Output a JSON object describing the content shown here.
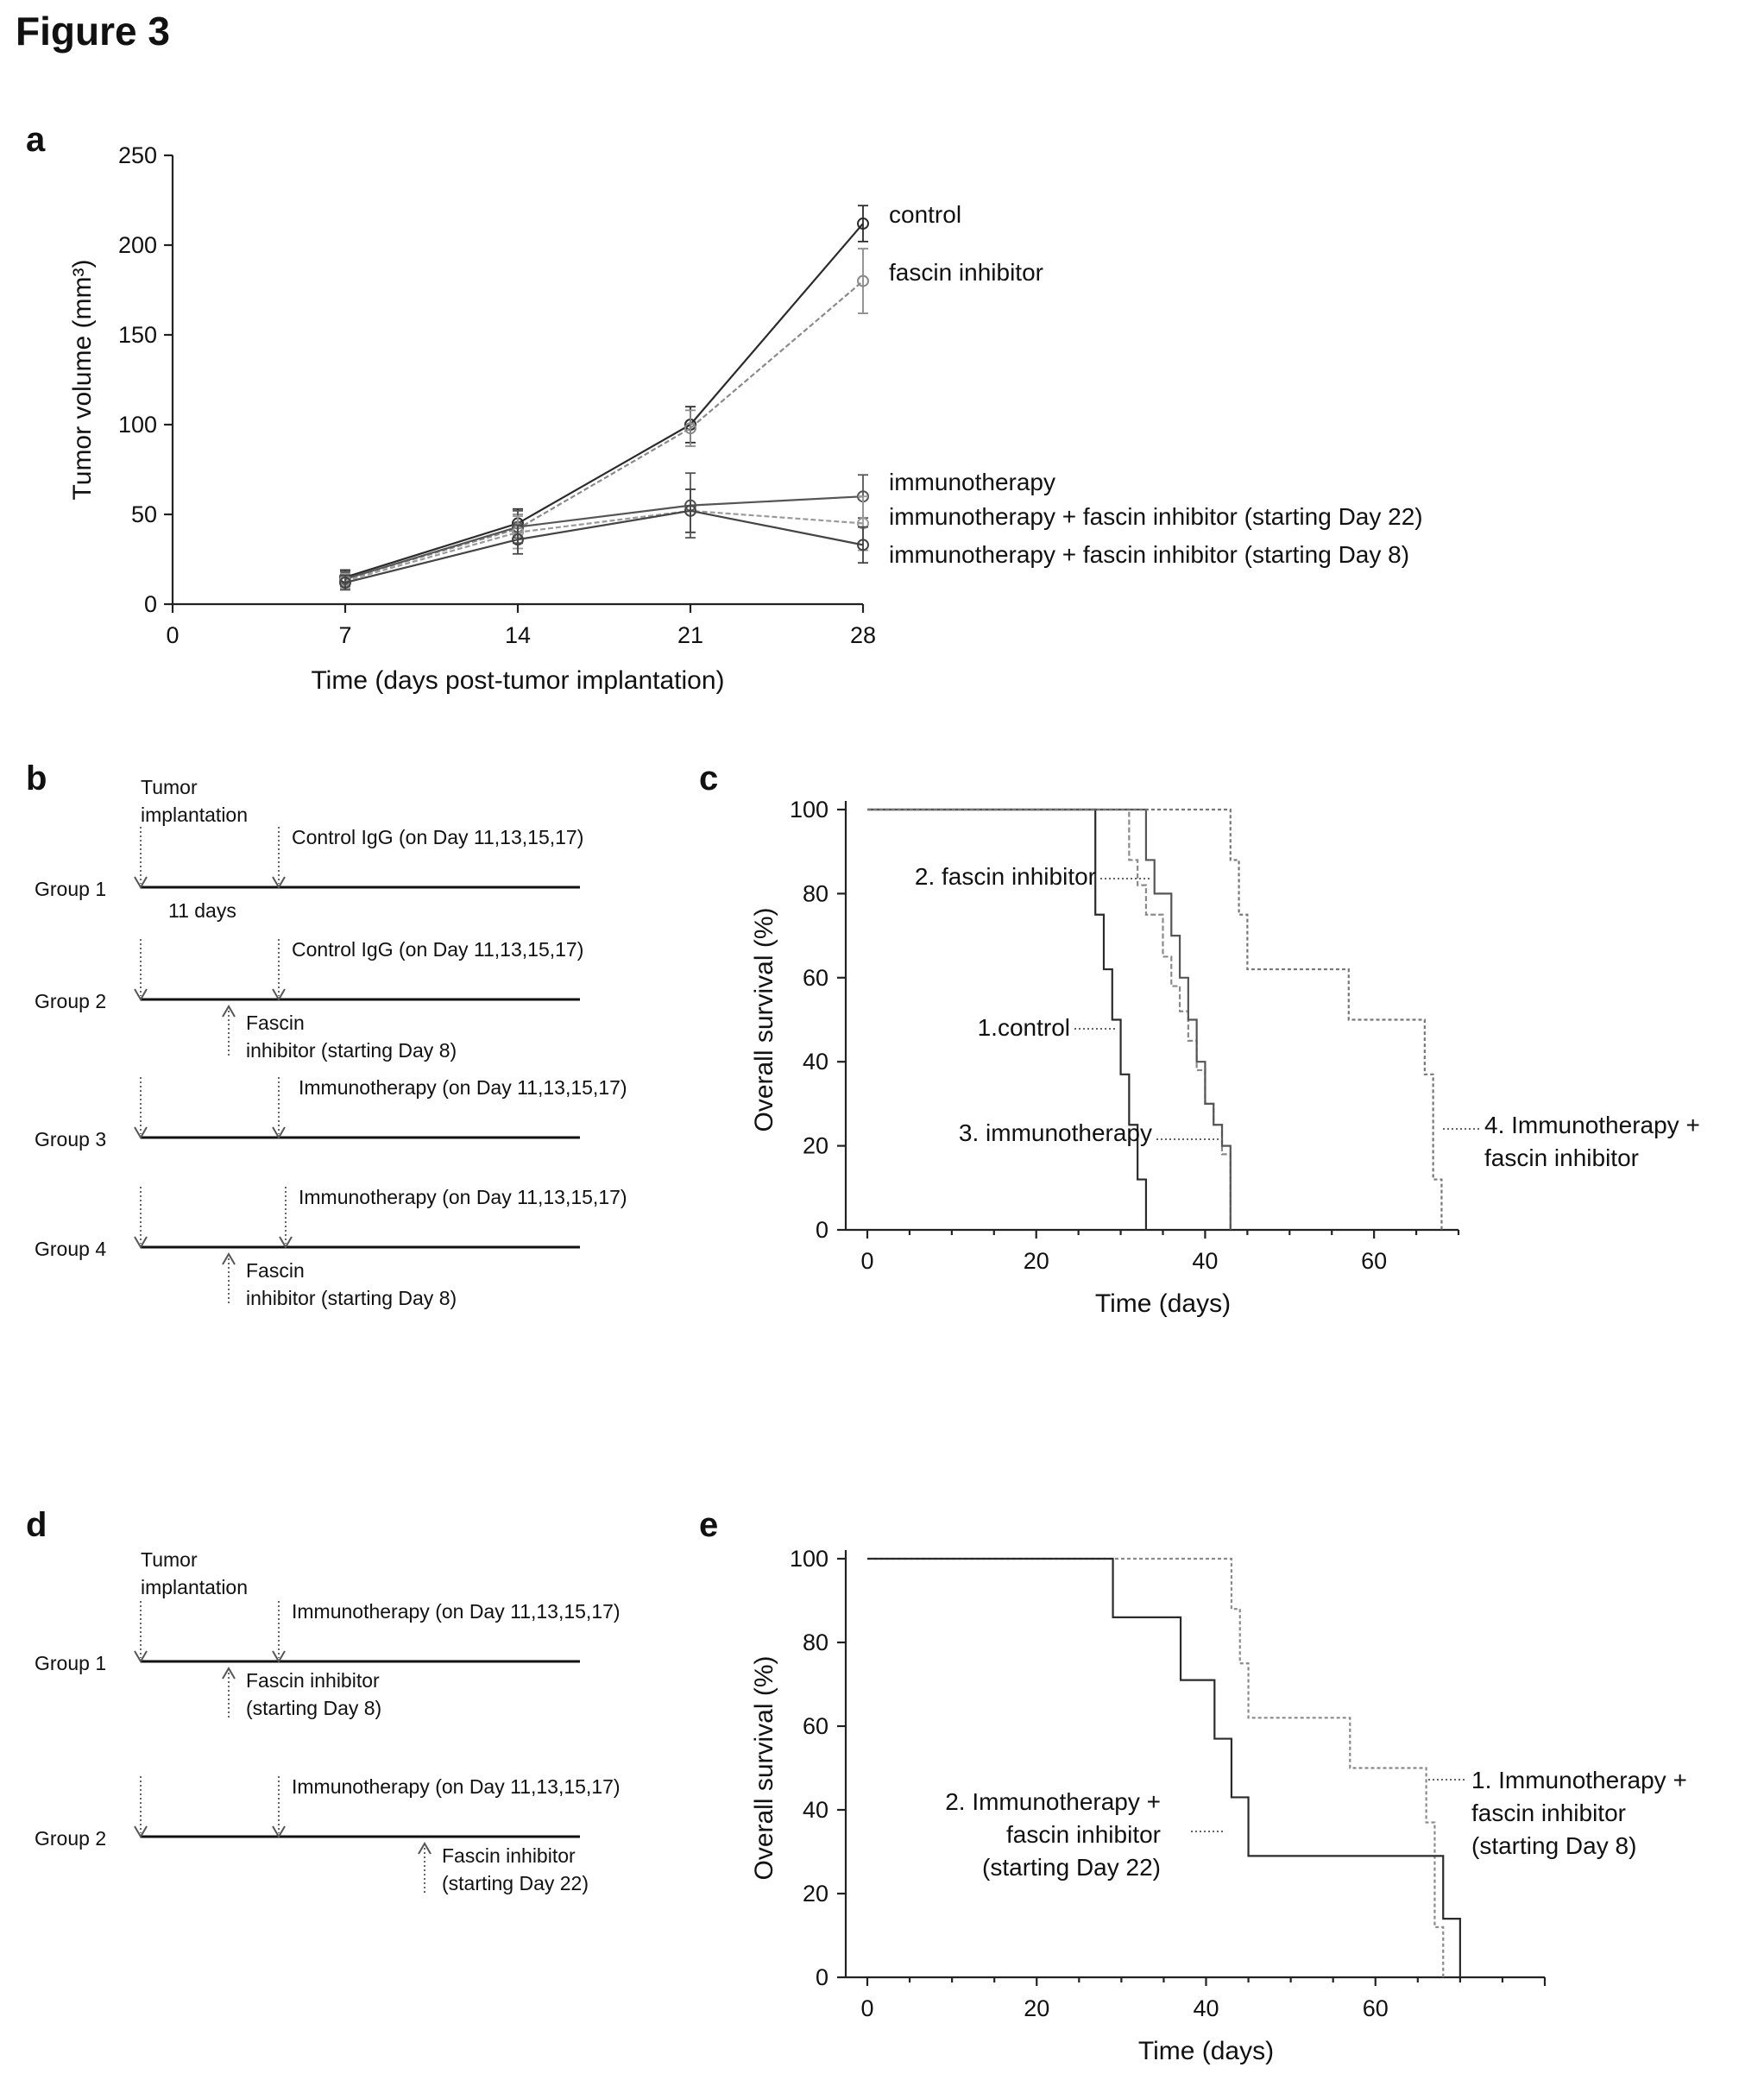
{
  "figure_title": "Figure 3",
  "colors": {
    "control": "#2b2b2b",
    "fascin": "#8a8a8a",
    "immuno": "#555555",
    "combo22": "#9a9a9a",
    "combo8": "#444444",
    "arrow": "#777777"
  },
  "panels": {
    "a": {
      "label": "a"
    },
    "b": {
      "label": "b"
    },
    "c": {
      "label": "c"
    },
    "d": {
      "label": "d"
    },
    "e": {
      "label": "e"
    }
  },
  "chart_data": [
    {
      "panel": "a",
      "type": "line",
      "title": "",
      "xlabel": "Time (days post-tumor implantation)",
      "ylabel": "Tumor volume (mm³)",
      "xlim": [
        0,
        28
      ],
      "ylim": [
        0,
        250
      ],
      "xticks": [
        "0",
        "7",
        "14",
        "21",
        "28"
      ],
      "yticks": [
        "0",
        "50",
        "100",
        "150",
        "200",
        "250"
      ],
      "x": [
        7,
        14,
        21,
        28
      ],
      "grid": false,
      "series": [
        {
          "name": "control",
          "values": [
            15,
            45,
            100,
            212
          ],
          "errors": [
            4,
            8,
            10,
            10
          ]
        },
        {
          "name": "fascin inhibitor",
          "values": [
            14,
            42,
            98,
            180
          ],
          "errors": [
            4,
            8,
            10,
            18
          ]
        },
        {
          "name": "immunotherapy",
          "values": [
            14,
            43,
            55,
            60
          ],
          "errors": [
            4,
            9,
            18,
            12
          ]
        },
        {
          "name": "immunotherapy + fascin inhibitor (starting Day 22)",
          "values": [
            13,
            40,
            52,
            45
          ],
          "errors": [
            4,
            9,
            12,
            15
          ]
        },
        {
          "name": "immunotherapy + fascin inhibitor (starting Day 8)",
          "values": [
            12,
            36,
            52,
            33
          ],
          "errors": [
            4,
            8,
            12,
            10
          ]
        }
      ]
    },
    {
      "panel": "c",
      "type": "line",
      "title": "",
      "xlabel": "Time (days)",
      "ylabel": "Overall survival (%)",
      "xlim": [
        0,
        70
      ],
      "ylim": [
        0,
        100
      ],
      "xticks": [
        "0",
        "20",
        "40",
        "60"
      ],
      "yticks": [
        "0",
        "20",
        "40",
        "60",
        "80",
        "100"
      ],
      "series": [
        {
          "name": "1.control",
          "label": "1.control",
          "x": [
            0,
            27,
            28,
            29,
            30,
            31,
            32,
            33
          ],
          "y": [
            100,
            75,
            62,
            50,
            37,
            25,
            12,
            0
          ]
        },
        {
          "name": "2. fascin inhibitor",
          "label": "2. fascin inhibitor",
          "x": [
            0,
            31,
            32,
            33,
            35,
            36,
            37,
            38,
            39,
            40,
            41,
            42,
            43
          ],
          "y": [
            100,
            88,
            82,
            75,
            65,
            58,
            52,
            45,
            38,
            30,
            25,
            18,
            0
          ]
        },
        {
          "name": "3. immunotherapy",
          "label": "3. immunotherapy",
          "x": [
            0,
            33,
            34,
            36,
            37,
            38,
            39,
            40,
            41,
            42,
            43
          ],
          "y": [
            100,
            88,
            80,
            70,
            60,
            50,
            40,
            30,
            25,
            20,
            0
          ]
        },
        {
          "name": "4. Immunotherapy + fascin inhibitor",
          "label": [
            "4. Immunotherapy +",
            "fascin inhibitor"
          ],
          "x": [
            0,
            43,
            44,
            45,
            57,
            66,
            67,
            68
          ],
          "y": [
            100,
            88,
            75,
            62,
            50,
            37,
            12,
            0
          ]
        }
      ]
    },
    {
      "panel": "e",
      "type": "line",
      "title": "",
      "xlabel": "Time (days)",
      "ylabel": "Overall survival (%)",
      "xlim": [
        0,
        80
      ],
      "ylim": [
        0,
        100
      ],
      "xticks": [
        "0",
        "20",
        "40",
        "60"
      ],
      "yticks": [
        "0",
        "20",
        "40",
        "60",
        "80",
        "100"
      ],
      "series": [
        {
          "name": "1. Immunotherapy + fascin inhibitor (starting Day 8)",
          "label": [
            "1. Immunotherapy +",
            "fascin inhibitor",
            "(starting Day 8)"
          ],
          "x": [
            0,
            43,
            44,
            45,
            57,
            66,
            67,
            68
          ],
          "y": [
            100,
            88,
            75,
            62,
            50,
            37,
            12,
            0
          ]
        },
        {
          "name": "2. Immunotherapy + fascin inhibitor (starting Day 22)",
          "label": [
            "2. Immunotherapy +",
            "fascin inhibitor",
            "(starting Day 22)"
          ],
          "x": [
            0,
            29,
            37,
            40,
            41,
            42,
            43,
            44,
            45,
            67,
            68,
            70
          ],
          "y": [
            100,
            86,
            71,
            71,
            57,
            57,
            43,
            43,
            29,
            29,
            14,
            0
          ]
        }
      ]
    }
  ],
  "diagram_b": {
    "tumor_label": [
      "Tumor",
      "implantation"
    ],
    "days_label": "11 days",
    "groups": [
      {
        "label": "Group 1",
        "top_text": "Control IgG (on Day 11,13,15,17)",
        "bottom_text": []
      },
      {
        "label": "Group 2",
        "top_text": "Control IgG (on Day 11,13,15,17)",
        "bottom_text": [
          "Fascin",
          "inhibitor (starting Day 8)"
        ]
      },
      {
        "label": "Group 3",
        "top_text": "Immunotherapy (on Day 11,13,15,17)",
        "bottom_text": []
      },
      {
        "label": "Group 4",
        "top_text": "Immunotherapy (on Day 11,13,15,17)",
        "bottom_text": [
          "Fascin",
          "inhibitor (starting Day 8)"
        ]
      }
    ]
  },
  "diagram_d": {
    "tumor_label": [
      "Tumor",
      "implantation"
    ],
    "groups": [
      {
        "label": "Group 1",
        "top_text": "Immunotherapy (on Day 11,13,15,17)",
        "bottom_text": [
          "Fascin inhibitor",
          "(starting Day 8)"
        ]
      },
      {
        "label": "Group 2",
        "top_text": "Immunotherapy (on Day 11,13,15,17)",
        "bottom_text": [
          "Fascin inhibitor",
          "(starting Day 22)"
        ]
      }
    ]
  }
}
